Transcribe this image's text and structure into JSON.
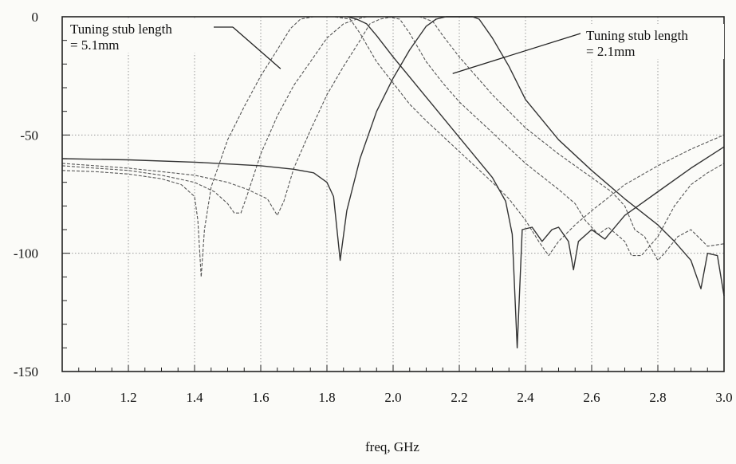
{
  "chart_data": {
    "type": "line",
    "title": "",
    "xlabel": "freq, GHz",
    "ylabel": "",
    "xlim": [
      1.0,
      3.0
    ],
    "ylim": [
      -150,
      0
    ],
    "x_ticks": [
      1.0,
      1.2,
      1.4,
      1.6,
      1.8,
      2.0,
      2.2,
      2.4,
      2.6,
      2.8,
      3.0
    ],
    "x_tick_labels": [
      "1.0",
      "1.2",
      "1.4",
      "1.6",
      "1.8",
      "2.0",
      "2.2",
      "2.4",
      "2.6",
      "2.8",
      "3.0"
    ],
    "y_ticks": [
      0,
      -50,
      -100,
      -150
    ],
    "y_tick_labels": [
      "0",
      "-50",
      "-100",
      "-150"
    ],
    "grid": true,
    "annotations": [
      {
        "lines": [
          "Tuning stub length",
          "= 5.1mm"
        ],
        "arrow_to": [
          1.66,
          -22
        ]
      },
      {
        "lines": [
          "Tuning stub length",
          "= 2.1mm"
        ],
        "arrow_to": [
          2.18,
          -24
        ]
      }
    ],
    "series": [
      {
        "style": "dash",
        "color": "#555555",
        "points": [
          [
            1.0,
            -65
          ],
          [
            1.1,
            -65.5
          ],
          [
            1.2,
            -66.5
          ],
          [
            1.3,
            -68.5
          ],
          [
            1.36,
            -71
          ],
          [
            1.4,
            -76
          ],
          [
            1.41,
            -86
          ],
          [
            1.42,
            -110
          ],
          [
            1.43,
            -90
          ],
          [
            1.45,
            -72
          ],
          [
            1.5,
            -52
          ],
          [
            1.55,
            -38
          ],
          [
            1.6,
            -25
          ],
          [
            1.65,
            -14
          ],
          [
            1.69,
            -5
          ],
          [
            1.72,
            -1
          ],
          [
            1.76,
            0
          ],
          [
            1.82,
            0
          ],
          [
            1.87,
            -1
          ],
          [
            1.9,
            -7
          ],
          [
            1.95,
            -19
          ],
          [
            2.0,
            -28
          ],
          [
            2.05,
            -37
          ],
          [
            2.1,
            -44
          ],
          [
            2.2,
            -57
          ],
          [
            2.3,
            -70
          ],
          [
            2.35,
            -77
          ],
          [
            2.4,
            -86
          ],
          [
            2.44,
            -95
          ],
          [
            2.47,
            -101
          ],
          [
            2.5,
            -95
          ],
          [
            2.55,
            -88
          ],
          [
            2.6,
            -82
          ],
          [
            2.7,
            -71
          ],
          [
            2.8,
            -63
          ],
          [
            2.9,
            -56
          ],
          [
            3.0,
            -50
          ]
        ]
      },
      {
        "style": "dash",
        "color": "#555555",
        "points": [
          [
            1.0,
            -63
          ],
          [
            1.1,
            -64
          ],
          [
            1.2,
            -65
          ],
          [
            1.3,
            -67
          ],
          [
            1.4,
            -70
          ],
          [
            1.46,
            -74
          ],
          [
            1.5,
            -79
          ],
          [
            1.52,
            -83
          ],
          [
            1.54,
            -83
          ],
          [
            1.56,
            -75
          ],
          [
            1.6,
            -58
          ],
          [
            1.65,
            -42
          ],
          [
            1.7,
            -29
          ],
          [
            1.75,
            -19
          ],
          [
            1.8,
            -9
          ],
          [
            1.85,
            -3
          ],
          [
            1.89,
            -1
          ],
          [
            1.92,
            0
          ],
          [
            1.98,
            0
          ],
          [
            2.02,
            -1
          ],
          [
            2.05,
            -7
          ],
          [
            2.1,
            -19
          ],
          [
            2.15,
            -28
          ],
          [
            2.2,
            -36
          ],
          [
            2.3,
            -49
          ],
          [
            2.4,
            -62
          ],
          [
            2.5,
            -73
          ],
          [
            2.55,
            -79
          ],
          [
            2.58,
            -86
          ],
          [
            2.62,
            -92
          ],
          [
            2.65,
            -89
          ],
          [
            2.7,
            -95
          ],
          [
            2.72,
            -101
          ],
          [
            2.75,
            -101
          ],
          [
            2.8,
            -93
          ],
          [
            2.85,
            -80
          ],
          [
            2.9,
            -71
          ],
          [
            2.95,
            -66
          ],
          [
            3.0,
            -62
          ]
        ]
      },
      {
        "style": "dash",
        "color": "#555555",
        "points": [
          [
            1.0,
            -62
          ],
          [
            1.1,
            -63
          ],
          [
            1.2,
            -64
          ],
          [
            1.3,
            -65.5
          ],
          [
            1.4,
            -67
          ],
          [
            1.5,
            -70
          ],
          [
            1.56,
            -73
          ],
          [
            1.62,
            -77
          ],
          [
            1.65,
            -84
          ],
          [
            1.67,
            -78
          ],
          [
            1.7,
            -64
          ],
          [
            1.75,
            -48
          ],
          [
            1.8,
            -33
          ],
          [
            1.85,
            -21
          ],
          [
            1.9,
            -10
          ],
          [
            1.93,
            -3
          ],
          [
            1.96,
            -1
          ],
          [
            2.0,
            0
          ],
          [
            2.08,
            0
          ],
          [
            2.12,
            -2
          ],
          [
            2.15,
            -8
          ],
          [
            2.2,
            -17
          ],
          [
            2.3,
            -33
          ],
          [
            2.4,
            -47
          ],
          [
            2.5,
            -58
          ],
          [
            2.6,
            -68
          ],
          [
            2.66,
            -74
          ],
          [
            2.7,
            -80
          ],
          [
            2.73,
            -90
          ],
          [
            2.76,
            -93
          ],
          [
            2.8,
            -103
          ],
          [
            2.82,
            -100
          ],
          [
            2.86,
            -93
          ],
          [
            2.9,
            -90
          ],
          [
            2.95,
            -97
          ],
          [
            3.0,
            -96
          ]
        ]
      },
      {
        "style": "solid",
        "color": "#333333",
        "points": [
          [
            1.0,
            -60
          ],
          [
            1.2,
            -60.5
          ],
          [
            1.4,
            -61.5
          ],
          [
            1.6,
            -63
          ],
          [
            1.7,
            -64.5
          ],
          [
            1.76,
            -66
          ],
          [
            1.8,
            -70
          ],
          [
            1.82,
            -76
          ],
          [
            1.84,
            -103
          ],
          [
            1.86,
            -82
          ],
          [
            1.9,
            -60
          ],
          [
            1.95,
            -40
          ],
          [
            2.0,
            -26
          ],
          [
            2.05,
            -14
          ],
          [
            2.1,
            -4
          ],
          [
            2.13,
            -1
          ],
          [
            2.16,
            0
          ],
          [
            2.24,
            0
          ],
          [
            2.26,
            -1
          ],
          [
            2.3,
            -9
          ],
          [
            2.35,
            -21
          ],
          [
            2.4,
            -35
          ],
          [
            2.5,
            -52
          ],
          [
            2.6,
            -65
          ],
          [
            2.7,
            -77
          ],
          [
            2.8,
            -88
          ],
          [
            2.85,
            -95
          ],
          [
            2.9,
            -103
          ],
          [
            2.93,
            -115
          ],
          [
            2.95,
            -100
          ],
          [
            2.98,
            -101
          ],
          [
            3.0,
            -118
          ]
        ]
      },
      {
        "style": "solid",
        "color": "#333333",
        "points": [
          [
            1.86,
            0
          ],
          [
            1.89,
            -1
          ],
          [
            1.92,
            -3
          ],
          [
            1.95,
            -8
          ],
          [
            2.0,
            -17
          ],
          [
            2.1,
            -34
          ],
          [
            2.2,
            -51
          ],
          [
            2.3,
            -68
          ],
          [
            2.34,
            -78
          ],
          [
            2.36,
            -92
          ],
          [
            2.375,
            -140
          ],
          [
            2.39,
            -90
          ],
          [
            2.42,
            -89
          ],
          [
            2.45,
            -95
          ],
          [
            2.48,
            -90
          ],
          [
            2.5,
            -89
          ],
          [
            2.53,
            -95
          ],
          [
            2.545,
            -107
          ],
          [
            2.56,
            -95
          ],
          [
            2.6,
            -90
          ],
          [
            2.64,
            -94
          ],
          [
            2.7,
            -84
          ],
          [
            2.8,
            -74
          ],
          [
            2.9,
            -64
          ],
          [
            3.0,
            -55
          ]
        ]
      }
    ]
  }
}
